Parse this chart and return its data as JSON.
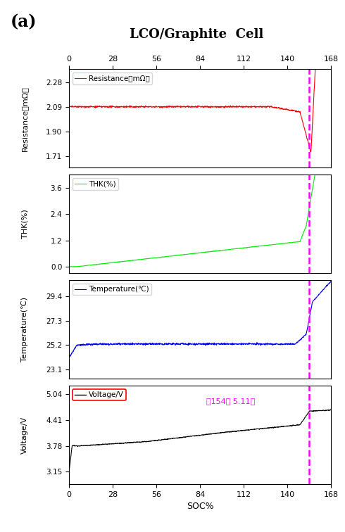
{
  "title": "LCO/Graphite  Cell",
  "label_a": "(a)",
  "xmax": 168,
  "xticks": [
    0,
    28,
    56,
    84,
    112,
    140,
    168
  ],
  "dashed_x": 154,
  "annotation_color": "#FF00FF",
  "resistance": {
    "ylabel": "Resistance（mΩ）",
    "legend": "Resistance（mΩ）",
    "color": "red",
    "yticks": [
      1.71,
      1.9,
      2.09,
      2.28
    ],
    "ylim": [
      1.62,
      2.38
    ]
  },
  "thk": {
    "ylabel": "THK(%)",
    "legend": "THK(%)",
    "color": "#00EE00",
    "yticks": [
      0.0,
      1.2,
      2.4,
      3.6
    ],
    "ylim": [
      -0.3,
      4.2
    ]
  },
  "temperature": {
    "ylabel": "Temperature(℃)",
    "legend": "Temperature(℃)",
    "color": "blue",
    "yticks": [
      23.1,
      25.2,
      27.3,
      29.4
    ],
    "ylim": [
      22.3,
      30.8
    ]
  },
  "voltage": {
    "ylabel": "Voltage/V",
    "legend": "Voltage/V",
    "color": "black",
    "yticks": [
      3.15,
      3.78,
      4.41,
      5.04
    ],
    "ylim": [
      2.85,
      5.25
    ],
    "legend_box_color": "red"
  },
  "xlabel": "SOC%",
  "dashed_color": "#FF00FF",
  "dashed_linewidth": 1.8
}
